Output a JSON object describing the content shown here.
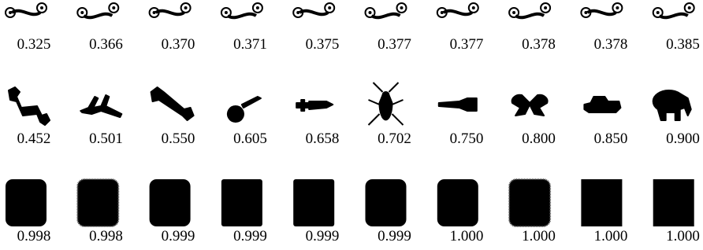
{
  "rows": [
    {
      "scores": [
        "0.325",
        "0.366",
        "0.370",
        "0.371",
        "0.375",
        "0.377",
        "0.377",
        "0.378",
        "0.378",
        "0.385"
      ]
    },
    {
      "scores": [
        "0.452",
        "0.501",
        "0.550",
        "0.605",
        "0.658",
        "0.702",
        "0.750",
        "0.800",
        "0.850",
        "0.900"
      ]
    },
    {
      "scores": [
        "0.998",
        "0.998",
        "0.999",
        "0.999",
        "0.999",
        "0.999",
        "1.000",
        "1.000",
        "1.000",
        "1.000"
      ]
    }
  ]
}
